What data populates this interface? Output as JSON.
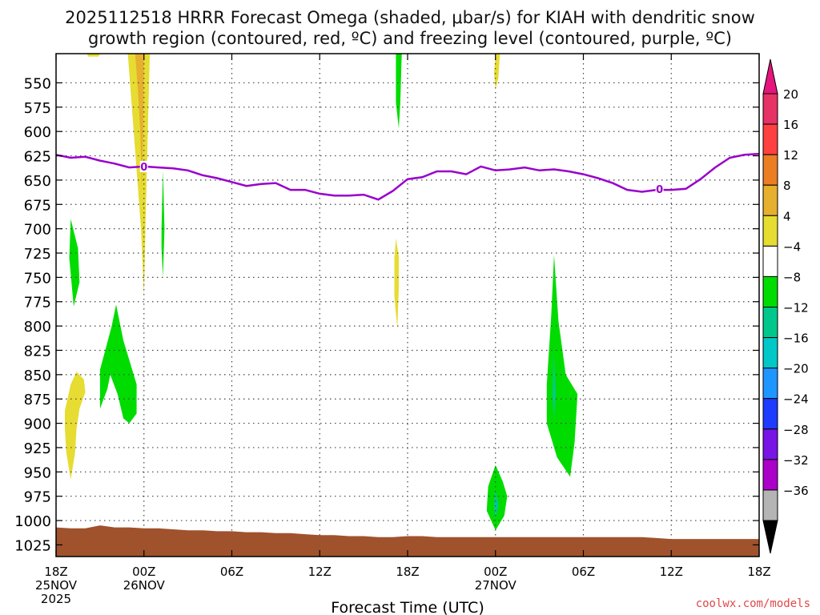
{
  "chart_data": {
    "type": "heatmap",
    "title_line1": "2025112518 HRRR Forecast Omega (shaded, μbar/s) for KIAH with dendritic snow",
    "title_line2": "growth region (contoured, red, ºC) and freezing level (contoured, purple, ºC)",
    "xlabel": "Forecast Time (UTC)",
    "credit": "coolwx.com/models",
    "x_range_hours": [
      0,
      48
    ],
    "y_range_mb": [
      520,
      1037
    ],
    "y_ticks": [
      550,
      575,
      600,
      625,
      650,
      675,
      700,
      725,
      750,
      775,
      800,
      825,
      850,
      875,
      900,
      925,
      950,
      975,
      1000,
      1025
    ],
    "x_ticks": [
      {
        "h": 0,
        "line1": "18Z",
        "line2": "25NOV",
        "line3": "2025"
      },
      {
        "h": 6,
        "line1": "00Z",
        "line2": "26NOV",
        "line3": ""
      },
      {
        "h": 12,
        "line1": "06Z",
        "line2": "",
        "line3": ""
      },
      {
        "h": 18,
        "line1": "12Z",
        "line2": "",
        "line3": ""
      },
      {
        "h": 24,
        "line1": "18Z",
        "line2": "",
        "line3": ""
      },
      {
        "h": 30,
        "line1": "00Z",
        "line2": "27NOV",
        "line3": ""
      },
      {
        "h": 36,
        "line1": "06Z",
        "line2": "",
        "line3": ""
      },
      {
        "h": 42,
        "line1": "12Z",
        "line2": "",
        "line3": ""
      },
      {
        "h": 48,
        "line1": "18Z",
        "line2": "",
        "line3": ""
      }
    ],
    "freezing_level": {
      "color": "#9900cc",
      "label": "0",
      "label_points": [
        [
          6.0,
          636
        ],
        [
          41.2,
          659
        ]
      ],
      "points": [
        [
          0,
          624
        ],
        [
          1,
          627
        ],
        [
          2,
          626
        ],
        [
          3,
          630
        ],
        [
          4,
          633
        ],
        [
          5,
          637
        ],
        [
          6,
          636
        ],
        [
          7,
          637
        ],
        [
          8,
          638
        ],
        [
          9,
          640
        ],
        [
          10,
          645
        ],
        [
          11,
          648
        ],
        [
          12,
          652
        ],
        [
          13,
          656
        ],
        [
          14,
          654
        ],
        [
          15,
          653
        ],
        [
          16,
          660
        ],
        [
          17,
          660
        ],
        [
          18,
          664
        ],
        [
          19,
          666
        ],
        [
          20,
          666
        ],
        [
          21,
          665
        ],
        [
          22,
          670
        ],
        [
          23,
          661
        ],
        [
          24,
          649
        ],
        [
          25,
          647
        ],
        [
          26,
          641
        ],
        [
          27,
          641
        ],
        [
          28,
          644
        ],
        [
          29,
          636
        ],
        [
          30,
          640
        ],
        [
          31,
          639
        ],
        [
          32,
          637
        ],
        [
          33,
          640
        ],
        [
          34,
          639
        ],
        [
          35,
          641
        ],
        [
          36,
          644
        ],
        [
          37,
          648
        ],
        [
          38,
          653
        ],
        [
          39,
          660
        ],
        [
          40,
          662
        ],
        [
          41,
          660
        ],
        [
          42,
          660
        ],
        [
          43,
          659
        ],
        [
          44,
          649
        ],
        [
          45,
          637
        ],
        [
          46,
          627
        ],
        [
          47,
          624
        ],
        [
          48,
          623
        ]
      ]
    },
    "surface": {
      "color": "#a0522d",
      "points": [
        [
          0,
          1007
        ],
        [
          1,
          1008
        ],
        [
          2,
          1008
        ],
        [
          3,
          1005
        ],
        [
          4,
          1007
        ],
        [
          5,
          1007
        ],
        [
          6,
          1008
        ],
        [
          7,
          1008
        ],
        [
          8,
          1009
        ],
        [
          9,
          1010
        ],
        [
          10,
          1010
        ],
        [
          11,
          1011
        ],
        [
          12,
          1011
        ],
        [
          13,
          1012
        ],
        [
          14,
          1012
        ],
        [
          15,
          1013
        ],
        [
          16,
          1013
        ],
        [
          17,
          1014
        ],
        [
          18,
          1015
        ],
        [
          19,
          1015
        ],
        [
          20,
          1016
        ],
        [
          21,
          1016
        ],
        [
          22,
          1017
        ],
        [
          23,
          1017
        ],
        [
          24,
          1016
        ],
        [
          25,
          1016
        ],
        [
          26,
          1017
        ],
        [
          27,
          1017
        ],
        [
          28,
          1017
        ],
        [
          29,
          1017
        ],
        [
          30,
          1017
        ],
        [
          31,
          1017
        ],
        [
          32,
          1017
        ],
        [
          33,
          1017
        ],
        [
          34,
          1017
        ],
        [
          35,
          1017
        ],
        [
          36,
          1017
        ],
        [
          37,
          1017
        ],
        [
          38,
          1017
        ],
        [
          39,
          1017
        ],
        [
          40,
          1017
        ],
        [
          41,
          1018
        ],
        [
          42,
          1019
        ],
        [
          43,
          1019
        ],
        [
          44,
          1019
        ],
        [
          45,
          1019
        ],
        [
          46,
          1019
        ],
        [
          47,
          1019
        ],
        [
          48,
          1019
        ]
      ]
    },
    "omega_regions": [
      {
        "color": "#e6dc32",
        "points": [
          [
            4.9,
            520
          ],
          [
            6.4,
            520
          ],
          [
            6.3,
            580
          ],
          [
            6.2,
            640
          ],
          [
            6.1,
            700
          ],
          [
            6.0,
            770
          ],
          [
            5.8,
            700
          ],
          [
            5.5,
            640
          ],
          [
            5.2,
            580
          ],
          [
            4.9,
            520
          ]
        ]
      },
      {
        "color": "#e6af2d",
        "points": [
          [
            5.4,
            520
          ],
          [
            6.0,
            520
          ],
          [
            5.95,
            600
          ],
          [
            5.85,
            660
          ],
          [
            5.75,
            600
          ],
          [
            5.6,
            560
          ],
          [
            5.4,
            520
          ]
        ]
      },
      {
        "color": "#e6dc32",
        "points": [
          [
            2.1,
            520
          ],
          [
            3.0,
            520
          ],
          [
            2.9,
            523
          ],
          [
            2.2,
            523
          ]
        ]
      },
      {
        "color": "#e6dc32",
        "points": [
          [
            30.0,
            520
          ],
          [
            30.3,
            520
          ],
          [
            30.2,
            545
          ],
          [
            30.0,
            557
          ],
          [
            29.9,
            540
          ]
        ]
      },
      {
        "color": "#e6dc32",
        "points": [
          [
            0.6,
            887
          ],
          [
            1.0,
            860
          ],
          [
            1.4,
            847
          ],
          [
            1.9,
            855
          ],
          [
            2.0,
            868
          ],
          [
            1.6,
            885
          ],
          [
            1.4,
            905
          ],
          [
            1.3,
            930
          ],
          [
            1.0,
            958
          ],
          [
            0.7,
            930
          ],
          [
            0.6,
            905
          ]
        ]
      },
      {
        "color": "#e6dc32",
        "points": [
          [
            23.1,
            730
          ],
          [
            23.2,
            710
          ],
          [
            23.4,
            728
          ],
          [
            23.4,
            760
          ],
          [
            23.3,
            803
          ],
          [
            23.1,
            770
          ]
        ]
      },
      {
        "color": "#00dc00",
        "points": [
          [
            7.2,
            700
          ],
          [
            7.3,
            640
          ],
          [
            7.4,
            700
          ],
          [
            7.3,
            750
          ],
          [
            7.2,
            720
          ]
        ]
      },
      {
        "color": "#00dc00",
        "points": [
          [
            1.0,
            690
          ],
          [
            1.5,
            720
          ],
          [
            1.6,
            755
          ],
          [
            1.2,
            780
          ],
          [
            0.9,
            730
          ]
        ]
      },
      {
        "color": "#00dc00",
        "points": [
          [
            3.0,
            845
          ],
          [
            3.8,
            800
          ],
          [
            4.1,
            778
          ],
          [
            4.6,
            815
          ],
          [
            5.2,
            845
          ],
          [
            5.5,
            860
          ],
          [
            5.5,
            890
          ],
          [
            5.0,
            900
          ],
          [
            4.6,
            895
          ],
          [
            4.2,
            870
          ],
          [
            3.7,
            850
          ],
          [
            3.5,
            865
          ],
          [
            3.0,
            885
          ]
        ]
      },
      {
        "color": "#00dc00",
        "points": [
          [
            23.2,
            520
          ],
          [
            23.6,
            520
          ],
          [
            23.5,
            570
          ],
          [
            23.4,
            597
          ],
          [
            23.2,
            570
          ]
        ]
      },
      {
        "color": "#00dc00",
        "points": [
          [
            29.5,
            965
          ],
          [
            30.0,
            943
          ],
          [
            30.5,
            960
          ],
          [
            30.8,
            975
          ],
          [
            30.6,
            995
          ],
          [
            30.0,
            1010
          ],
          [
            29.4,
            990
          ]
        ]
      },
      {
        "color": "#00dc00",
        "points": [
          [
            33.5,
            860
          ],
          [
            33.8,
            790
          ],
          [
            34.0,
            727
          ],
          [
            34.3,
            795
          ],
          [
            34.8,
            850
          ],
          [
            35.6,
            870
          ],
          [
            35.4,
            920
          ],
          [
            35.1,
            955
          ],
          [
            34.2,
            935
          ],
          [
            33.5,
            900
          ]
        ]
      },
      {
        "color": "#00c8a0",
        "points": [
          [
            33.9,
            870
          ],
          [
            34.0,
            826
          ],
          [
            34.1,
            870
          ],
          [
            34.0,
            895
          ]
        ]
      },
      {
        "color": "#00c8a0",
        "points": [
          [
            29.9,
            985
          ],
          [
            30.0,
            968
          ],
          [
            30.2,
            985
          ],
          [
            30.0,
            998
          ]
        ]
      }
    ],
    "colorbar": {
      "ticks": [
        "20",
        "16",
        "12",
        "8",
        "4",
        "−4",
        "−8",
        "−12",
        "−16",
        "−20",
        "−24",
        "−28",
        "−32",
        "−36"
      ],
      "colors": [
        "#e63264",
        "#ff4040",
        "#eb7d23",
        "#e6af2d",
        "#e6dc32",
        "#ffffff",
        "#00dc00",
        "#00c88c",
        "#00c8c8",
        "#1e96ff",
        "#1e3cff",
        "#7814e6",
        "#aa00c8",
        "#b4b4b4"
      ],
      "top_arrow_color": "#e6147c",
      "bottom_arrow_color": "#000000"
    }
  }
}
